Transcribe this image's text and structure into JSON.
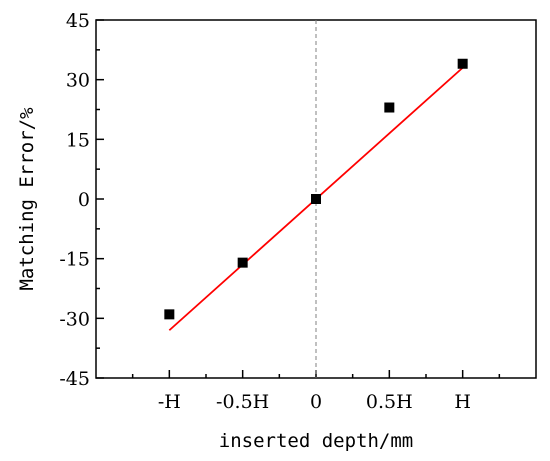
{
  "chart_data": {
    "type": "scatter",
    "xlabel": "inserted depth/mm",
    "ylabel": "Matching Error/%",
    "categories": [
      "-H",
      "-0.5H",
      "0",
      "0.5H",
      "H"
    ],
    "x_numeric": [
      -1,
      -0.5,
      0,
      0.5,
      1
    ],
    "xlim": [
      -1.5,
      1.5
    ],
    "ylim": [
      -45,
      45
    ],
    "y_ticks": [
      45,
      30,
      15,
      0,
      -15,
      -30,
      -45
    ],
    "series": [
      {
        "type": "scatter",
        "marker": "square",
        "color": "#000000",
        "values": [
          -29,
          -16,
          0,
          23,
          34
        ]
      },
      {
        "type": "line",
        "color": "#ff0000",
        "x": [
          -1,
          1
        ],
        "values": [
          -33,
          33
        ]
      }
    ],
    "reference_line": {
      "x": 0,
      "style": "dashed",
      "color": "#808080"
    },
    "grid": false
  }
}
